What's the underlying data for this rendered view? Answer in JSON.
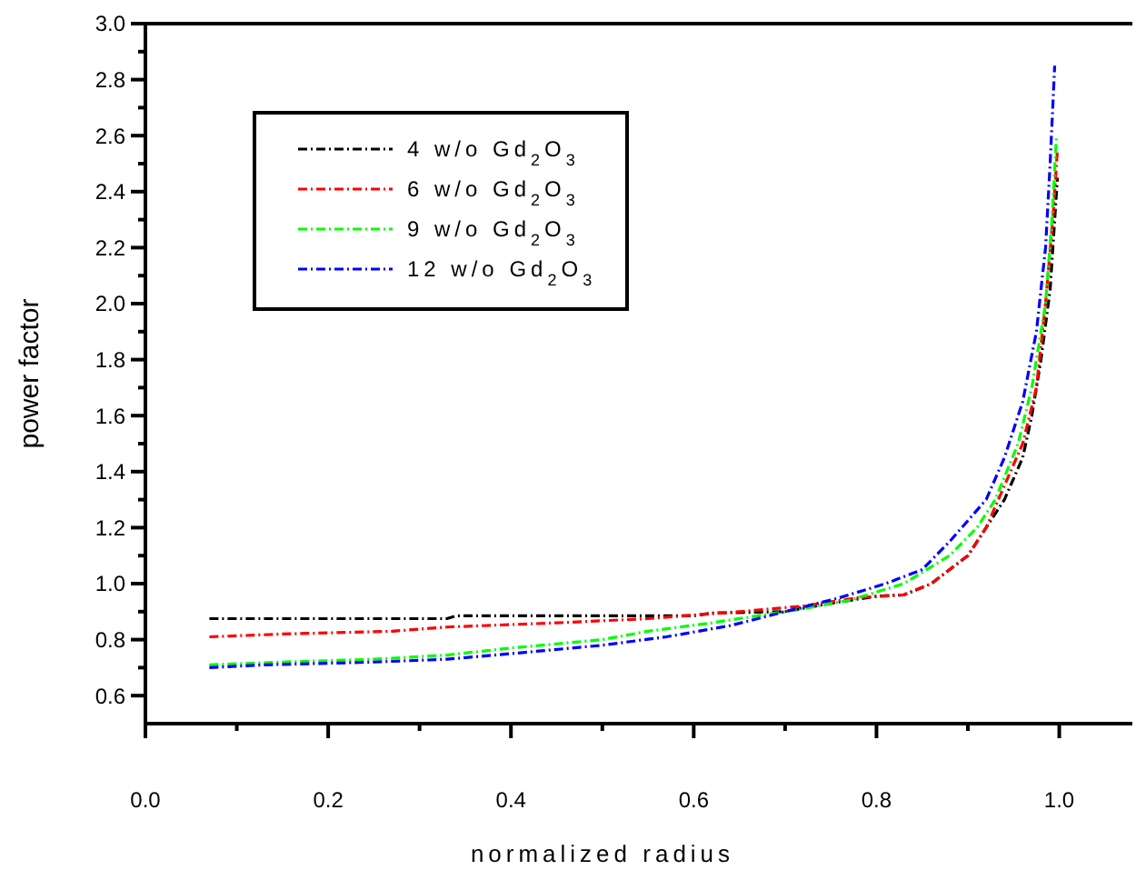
{
  "chart_data": {
    "type": "line",
    "xlabel": "normalized radius",
    "ylabel": "power factor",
    "xlim": [
      0,
      1.08
    ],
    "xticks": [
      {
        "value": 0,
        "label": "0.0"
      },
      {
        "value": 0.2,
        "label": "0.2"
      },
      {
        "value": 0.4,
        "label": "0.4"
      },
      {
        "value": 0.6,
        "label": "0.6"
      },
      {
        "value": 0.8,
        "label": "0.8"
      },
      {
        "value": 1,
        "label": "1.0"
      }
    ],
    "ylim": [
      0.5,
      3.0
    ],
    "yticks": [
      {
        "value": 0.6,
        "label": "0.6"
      },
      {
        "value": 0.8,
        "label": "0.8"
      },
      {
        "value": 1,
        "label": "1.0"
      },
      {
        "value": 1.2,
        "label": "1.2"
      },
      {
        "value": 1.4,
        "label": "1.4"
      },
      {
        "value": 1.6,
        "label": "1.6"
      },
      {
        "value": 1.8,
        "label": "1.8"
      },
      {
        "value": 2,
        "label": "2.0"
      },
      {
        "value": 2.2,
        "label": "2.2"
      },
      {
        "value": 2.4,
        "label": "2.4"
      },
      {
        "value": 2.6,
        "label": "2.6"
      },
      {
        "value": 2.8,
        "label": "2.8"
      },
      {
        "value": 3,
        "label": "3.0"
      }
    ],
    "legend": "top left",
    "line_style": "dashed",
    "marker": "none",
    "grid": false,
    "series": [
      {
        "name": "4 w/o Gd$_{2}$O$_{3}$",
        "color": "#000000",
        "x": [
          0.07,
          0.33,
          0.34,
          0.6,
          0.62,
          0.7,
          0.75,
          0.8,
          0.83,
          0.86,
          0.88,
          0.9,
          0.92,
          0.94,
          0.96,
          0.97,
          0.98,
          0.99,
          0.995,
          0.998
        ],
        "values": [
          0.875,
          0.875,
          0.885,
          0.885,
          0.895,
          0.9,
          0.93,
          0.955,
          0.96,
          1.0,
          1.05,
          1.1,
          1.2,
          1.3,
          1.45,
          1.6,
          1.8,
          2.05,
          2.3,
          2.45
        ]
      },
      {
        "name": "6 w/o Gd$_{2}$O$_{3}$",
        "color": "#ff0000",
        "x": [
          0.07,
          0.15,
          0.27,
          0.33,
          0.45,
          0.55,
          0.65,
          0.72,
          0.78,
          0.83,
          0.86,
          0.9,
          0.92,
          0.94,
          0.96,
          0.975,
          0.985,
          0.993,
          0.998
        ],
        "values": [
          0.81,
          0.82,
          0.83,
          0.845,
          0.86,
          0.875,
          0.9,
          0.92,
          0.95,
          0.96,
          1.0,
          1.1,
          1.2,
          1.35,
          1.5,
          1.7,
          2.0,
          2.3,
          2.55
        ]
      },
      {
        "name": "9 w/o Gd$_{2}$O$_{3}$",
        "color": "#00ff00",
        "x": [
          0.07,
          0.15,
          0.25,
          0.33,
          0.4,
          0.5,
          0.55,
          0.62,
          0.7,
          0.77,
          0.8,
          0.83,
          0.88,
          0.91,
          0.93,
          0.955,
          0.97,
          0.985,
          0.992,
          0.997
        ],
        "values": [
          0.71,
          0.72,
          0.73,
          0.745,
          0.77,
          0.8,
          0.83,
          0.86,
          0.9,
          0.94,
          0.97,
          1.0,
          1.1,
          1.2,
          1.3,
          1.5,
          1.7,
          2.0,
          2.3,
          2.6
        ]
      },
      {
        "name": "12 w/o Gd$_{2}$O$_{3}$",
        "color": "#0000ff",
        "x": [
          0.07,
          0.13,
          0.25,
          0.33,
          0.4,
          0.5,
          0.57,
          0.64,
          0.7,
          0.76,
          0.81,
          0.85,
          0.88,
          0.92,
          0.94,
          0.96,
          0.975,
          0.985,
          0.99,
          0.995
        ],
        "values": [
          0.7,
          0.71,
          0.72,
          0.73,
          0.75,
          0.78,
          0.81,
          0.85,
          0.9,
          0.95,
          1.0,
          1.05,
          1.15,
          1.3,
          1.45,
          1.65,
          1.9,
          2.2,
          2.5,
          2.85
        ]
      }
    ]
  }
}
